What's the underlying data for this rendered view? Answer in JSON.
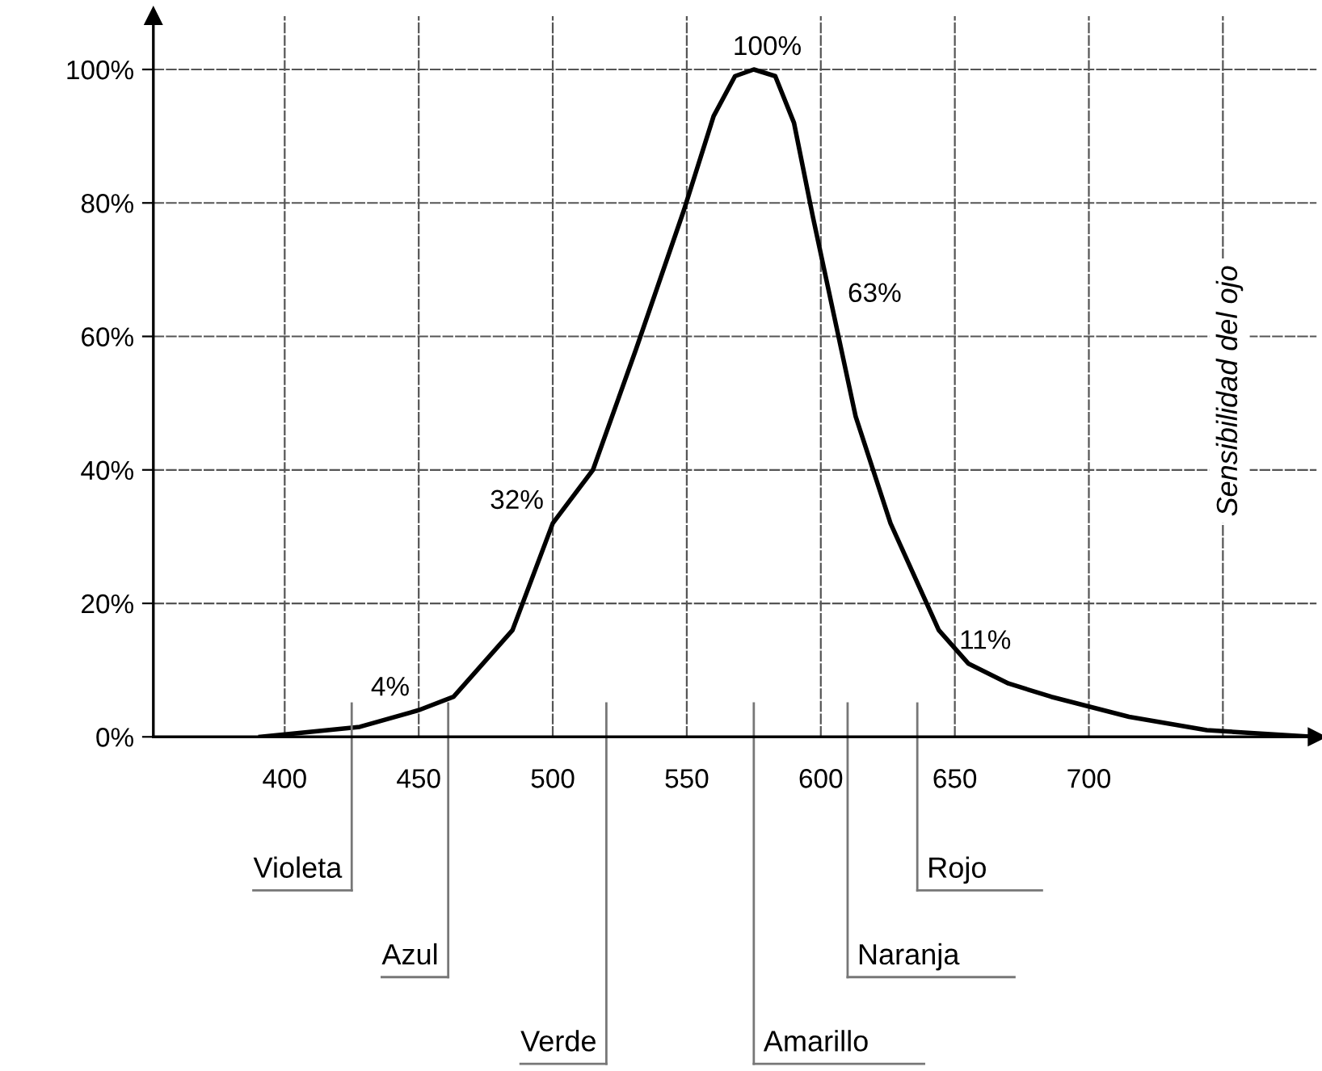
{
  "chart_data": {
    "type": "line",
    "ylabel": "Sensibilidad del ojo",
    "x": [
      391,
      428,
      450,
      463,
      485,
      500,
      515,
      531,
      549,
      560,
      568,
      575,
      583,
      590,
      597,
      605,
      613,
      626,
      644,
      655,
      670,
      686,
      715,
      744,
      784
    ],
    "series": [
      {
        "color": "#000000",
        "values": [
          0,
          1.5,
          4,
          6,
          16,
          32,
          40,
          58,
          79,
          93,
          99,
          100,
          99,
          92,
          78,
          63,
          48,
          32,
          16,
          11,
          8,
          6,
          3,
          1,
          0
        ]
      }
    ],
    "xlim": [
      351,
      785
    ],
    "ylim": [
      0,
      108
    ],
    "xticks": [
      400,
      450,
      500,
      550,
      600,
      650,
      700,
      {
        "value": 750,
        "label": null
      }
    ],
    "yticks": [
      {
        "value": 0,
        "label": "0%"
      },
      {
        "value": 20,
        "label": "20%"
      },
      {
        "value": 40,
        "label": "40%"
      },
      {
        "value": 60,
        "label": "60%"
      },
      {
        "value": 80,
        "label": "80%"
      },
      {
        "value": 100,
        "label": "100%"
      }
    ],
    "grid": true,
    "marker": "none",
    "line_style": "solid",
    "annotations": [
      {
        "text": "100%",
        "x": 575,
        "y": 100
      },
      {
        "text": "63%",
        "x": 605,
        "y": 63
      },
      {
        "text": "32%",
        "x": 500,
        "y": 32
      },
      {
        "text": "4%",
        "x": 450,
        "y": 4
      },
      {
        "text": "11%",
        "x": 655,
        "y": 11
      }
    ],
    "ref_lines": [
      {
        "axis": "x",
        "value": 425,
        "label": "Violeta",
        "color": "#777777"
      },
      {
        "axis": "x",
        "value": 461,
        "label": "Azul",
        "color": "#777777"
      },
      {
        "axis": "x",
        "value": 520,
        "label": "Verde",
        "color": "#777777"
      },
      {
        "axis": "x",
        "value": 575,
        "label": "Amarillo",
        "color": "#777777"
      },
      {
        "axis": "x",
        "value": 610,
        "label": "Naranja",
        "color": "#777777"
      },
      {
        "axis": "x",
        "value": 636,
        "label": "Rojo",
        "color": "#777777"
      }
    ]
  }
}
